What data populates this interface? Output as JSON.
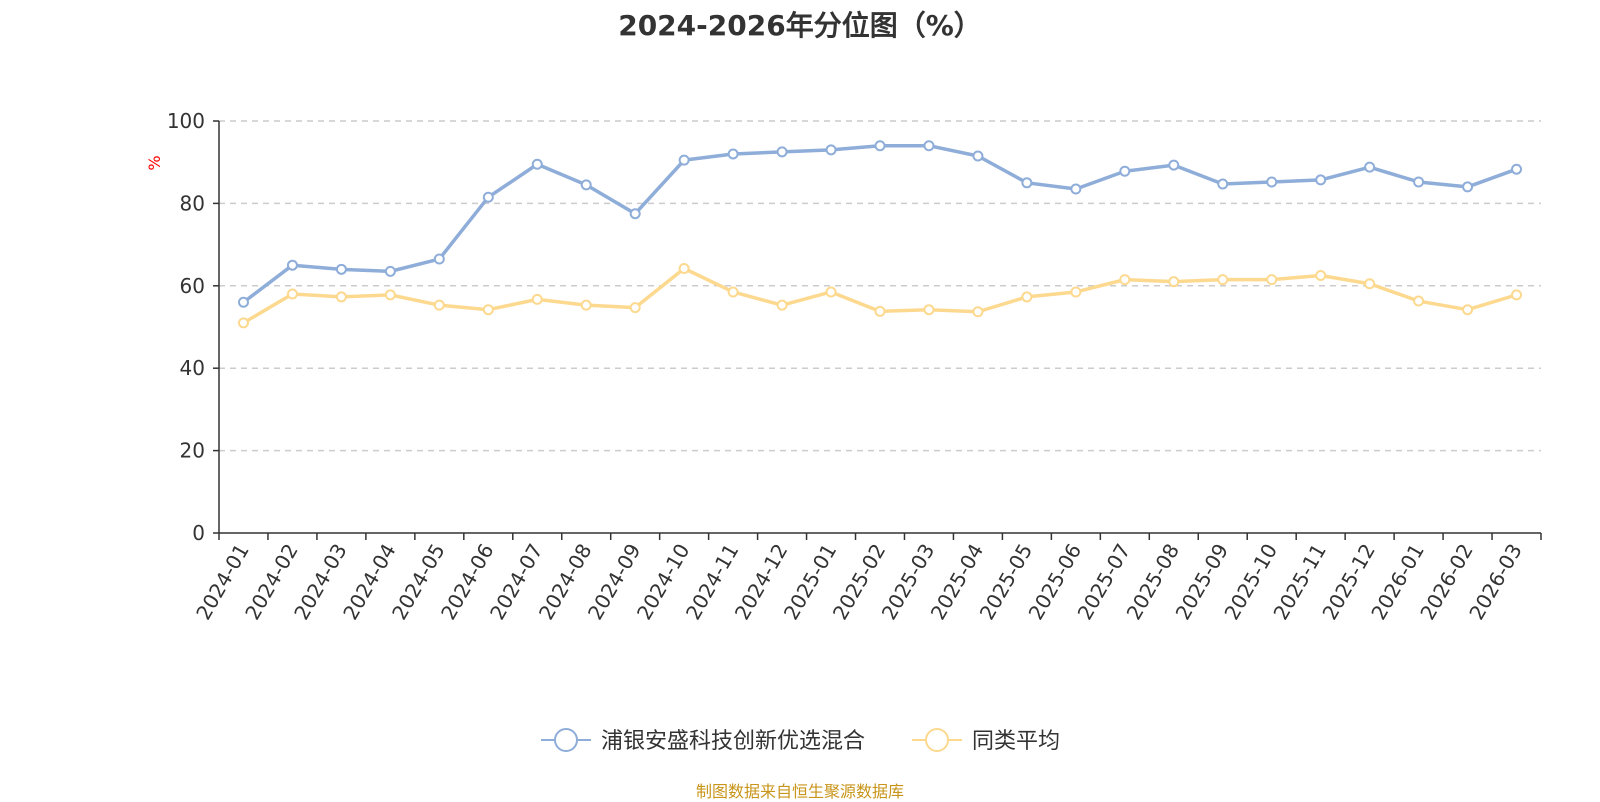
{
  "title": "2024-2026年分位图（%）",
  "source": "制图数据来自恒生聚源数据库",
  "colors": {
    "series1": "#8fadd9",
    "series2": "#fcd98f",
    "source": "#c8951a",
    "unit": "#ff0000",
    "grid": "#cccccc",
    "axis": "#333333"
  },
  "chart_data": {
    "type": "line",
    "title": "2024-2026年分位图（%）",
    "ylabel": "%",
    "ylim": [
      0,
      100
    ],
    "yticks": [
      0,
      20,
      40,
      60,
      80,
      100
    ],
    "grid": "horizontal dashed",
    "legend_position": "bottom-center",
    "categories": [
      "2024-01",
      "2024-02",
      "2024-03",
      "2024-04",
      "2024-05",
      "2024-06",
      "2024-07",
      "2024-08",
      "2024-09",
      "2024-10",
      "2024-11",
      "2024-12",
      "2025-01",
      "2025-02",
      "2025-03",
      "2025-04",
      "2025-05",
      "2025-06",
      "2025-07",
      "2025-08",
      "2025-09",
      "2025-10",
      "2025-11",
      "2025-12",
      "2026-01",
      "2026-02",
      "2026-03"
    ],
    "series": [
      {
        "name": "浦银安盛科技创新优选混合",
        "color": "#8fadd9",
        "values": [
          56,
          65,
          64,
          63.5,
          66.5,
          81.5,
          89.5,
          84.5,
          77.5,
          90.5,
          92,
          92.5,
          93,
          94,
          94,
          91.5,
          85,
          83.5,
          87.8,
          89.3,
          84.7,
          85.2,
          85.7,
          88.8,
          85.2,
          84,
          88.3
        ]
      },
      {
        "name": "同类平均",
        "color": "#fcd98f",
        "values": [
          51,
          58,
          57.3,
          57.8,
          55.3,
          54.2,
          56.7,
          55.3,
          54.7,
          64.2,
          58.5,
          55.3,
          58.5,
          53.8,
          54.2,
          53.7,
          57.3,
          58.5,
          61.5,
          61,
          61.5,
          61.5,
          62.5,
          60.5,
          56.3,
          54.2,
          57.8
        ]
      }
    ]
  }
}
